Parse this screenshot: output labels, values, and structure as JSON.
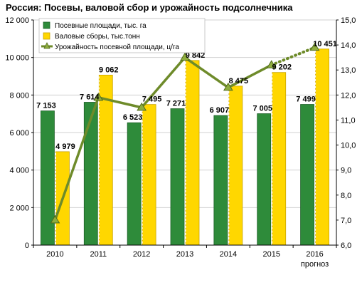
{
  "chart_data": {
    "type": "bar",
    "title": "Россия: Посевы, валовой сбор и урожайность подсолнечника",
    "categories": [
      "2010",
      "2011",
      "2012",
      "2013",
      "2014",
      "2015",
      "2016"
    ],
    "category_sublabels": [
      "",
      "",
      "",
      "",
      "",
      "",
      "прогноз"
    ],
    "ylim": [
      0,
      12000
    ],
    "yticks": [
      "0",
      "2 000",
      "4 000",
      "6 000",
      "8 000",
      "10 000",
      "12 000"
    ],
    "y2lim": [
      6.0,
      15.0
    ],
    "y2ticks": [
      "6,0",
      "7,0",
      "8,0",
      "9,0",
      "10,0",
      "11,0",
      "12,0",
      "13,0",
      "14,0",
      "15,0"
    ],
    "grid": true,
    "legend_position": "top-left",
    "series": [
      {
        "name": "Посевные площади, тыс. га",
        "kind": "bar",
        "axis": "left",
        "color": "#2e8b3a",
        "values": [
          7153,
          7614,
          6523,
          7271,
          6907,
          7005,
          7499
        ],
        "labels": [
          "7 153",
          "7 614",
          "6 523",
          "7 271",
          "6 907",
          "7 005",
          "7 499"
        ]
      },
      {
        "name": "Валовые сборы, тыс.тонн",
        "kind": "bar",
        "axis": "left",
        "color": "#ffd700",
        "values": [
          4979,
          9062,
          7495,
          9842,
          8475,
          9202,
          10451
        ],
        "labels": [
          "4 979",
          "9 062",
          "7 495",
          "9 842",
          "8 475",
          "9 202",
          "10 451"
        ]
      },
      {
        "name": "Урожайность посевной площади, ц/га",
        "kind": "line",
        "axis": "right",
        "color": "#6e8b2a",
        "values": [
          7.0,
          11.9,
          11.5,
          13.5,
          12.3,
          13.2,
          13.9
        ],
        "forecast_from_index": 5
      }
    ]
  }
}
